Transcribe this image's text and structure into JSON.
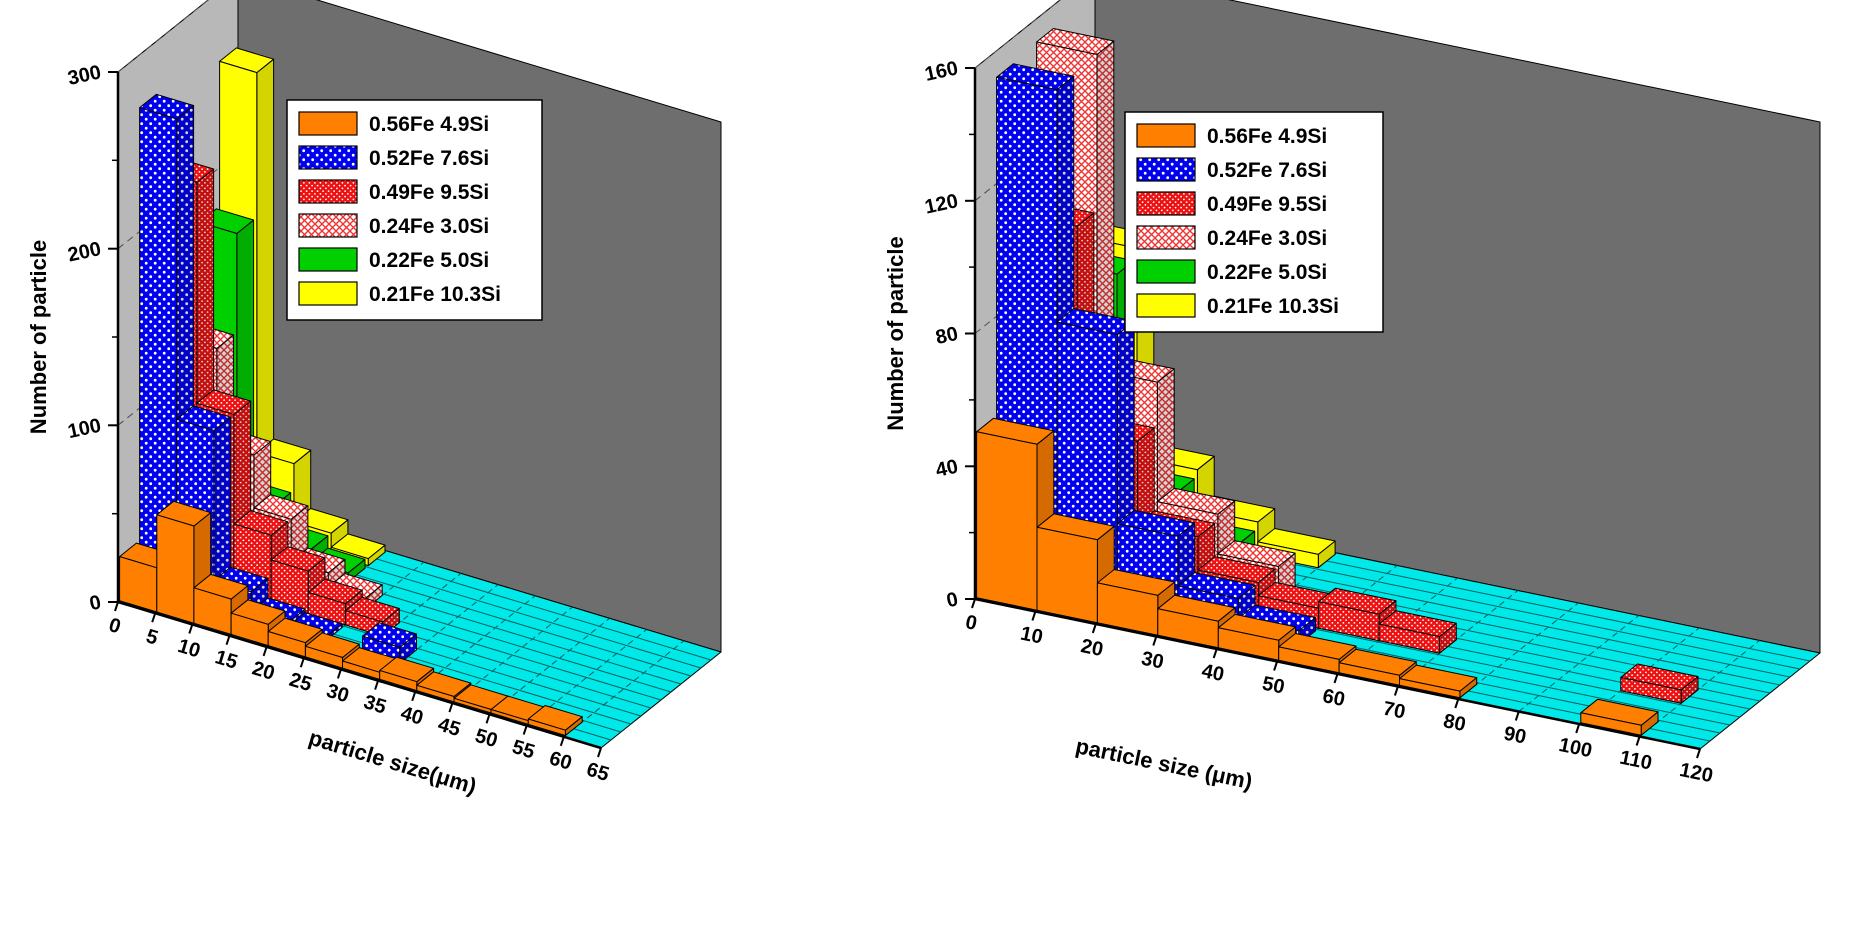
{
  "figure": {
    "background": "#ffffff",
    "description": "Two 3D histogram charts of particle size distributions for Al-Fe-Si alloys"
  },
  "chart_data": [
    {
      "type": "bar",
      "projection": "3d-histogram",
      "title": "",
      "xlabel": "particle size(μm)",
      "ylabel": "Number of particle",
      "xlim": [
        0,
        65
      ],
      "ylim": [
        0,
        300
      ],
      "xticks": [
        0,
        5,
        10,
        15,
        20,
        25,
        30,
        35,
        40,
        45,
        50,
        55,
        60,
        65
      ],
      "yticks": [
        0,
        100,
        200,
        300
      ],
      "y_minor_step": 50,
      "bin_width": 5,
      "grid": true,
      "legend_position": "upper-center",
      "floor_color": "#00e8e8",
      "left_wall_color": "#b8b8b8",
      "back_wall_color": "#6e6e6e",
      "series": [
        {
          "name": "0.56Fe 4.9Si",
          "color": "#ff8000",
          "pattern": "solid",
          "values": [
            25,
            55,
            20,
            12,
            8,
            6,
            4,
            5,
            3,
            2,
            2,
            3,
            0
          ]
        },
        {
          "name": "0.52Fe 7.6Si",
          "color": "#0000ee",
          "pattern": "dots",
          "values": [
            270,
            100,
            15,
            4,
            2,
            0,
            9,
            0,
            0,
            0,
            0,
            0,
            0
          ]
        },
        {
          "name": "0.49Fe 9.5Si",
          "color": "#ee1111",
          "pattern": "finedots",
          "values": [
            225,
            100,
            38,
            24,
            12,
            8,
            0,
            0,
            0,
            0,
            0,
            0,
            0
          ]
        },
        {
          "name": "0.24Fe 3.0Si",
          "color": "#ee3333",
          "pattern": "crosshatch",
          "values": [
            122,
            68,
            38,
            14,
            6,
            0,
            0,
            0,
            0,
            0,
            0,
            0,
            0
          ]
        },
        {
          "name": "0.22Fe 5.0Si",
          "color": "#00d000",
          "pattern": "solid",
          "values": [
            178,
            30,
            12,
            5,
            0,
            0,
            0,
            0,
            0,
            0,
            0,
            0,
            0
          ]
        },
        {
          "name": "0.21Fe 10.3Si",
          "color": "#ffff00",
          "pattern": "solid",
          "values": [
            260,
            45,
            12,
            4,
            0,
            0,
            0,
            0,
            0,
            0,
            0,
            0,
            0
          ]
        }
      ]
    },
    {
      "type": "bar",
      "projection": "3d-histogram",
      "title": "",
      "xlabel": "particle size (μm)",
      "ylabel": "Number of particle",
      "xlim": [
        0,
        120
      ],
      "ylim": [
        0,
        160
      ],
      "xticks": [
        0,
        10,
        20,
        30,
        40,
        50,
        60,
        70,
        80,
        90,
        100,
        110,
        120
      ],
      "yticks": [
        0,
        40,
        80,
        120,
        160
      ],
      "y_minor_step": 20,
      "bin_width": 10,
      "grid": true,
      "legend_position": "upper-center",
      "floor_color": "#00e8e8",
      "left_wall_color": "#b8b8b8",
      "back_wall_color": "#6e6e6e",
      "series": [
        {
          "name": "0.56Fe 4.9Si",
          "color": "#ff8000",
          "pattern": "solid",
          "values": [
            50,
            25,
            12,
            8,
            6,
            4,
            3,
            2,
            0,
            0,
            3,
            0
          ]
        },
        {
          "name": "0.52Fe 7.6Si",
          "color": "#0000ee",
          "pattern": "dots",
          "values": [
            152,
            82,
            25,
            10,
            4,
            0,
            0,
            0,
            0,
            0,
            0,
            0
          ]
        },
        {
          "name": "0.49Fe 9.5Si",
          "color": "#ee1111",
          "pattern": "finedots",
          "values": [
            106,
            45,
            20,
            10,
            6,
            8,
            5,
            0,
            0,
            0,
            4,
            0
          ]
        },
        {
          "name": "0.24Fe 3.0Si",
          "color": "#ee3333",
          "pattern": "crosshatch",
          "values": [
            153,
            58,
            22,
            10,
            0,
            0,
            0,
            0,
            0,
            0,
            0,
            0
          ]
        },
        {
          "name": "0.22Fe 5.0Si",
          "color": "#00d000",
          "pattern": "solid",
          "values": [
            82,
            20,
            8,
            0,
            0,
            0,
            0,
            0,
            0,
            0,
            0,
            0
          ]
        },
        {
          "name": "0.21Fe 10.3Si",
          "color": "#ffff00",
          "pattern": "solid",
          "values": [
            85,
            22,
            10,
            4,
            0,
            0,
            0,
            0,
            0,
            0,
            0,
            0
          ]
        }
      ]
    }
  ]
}
